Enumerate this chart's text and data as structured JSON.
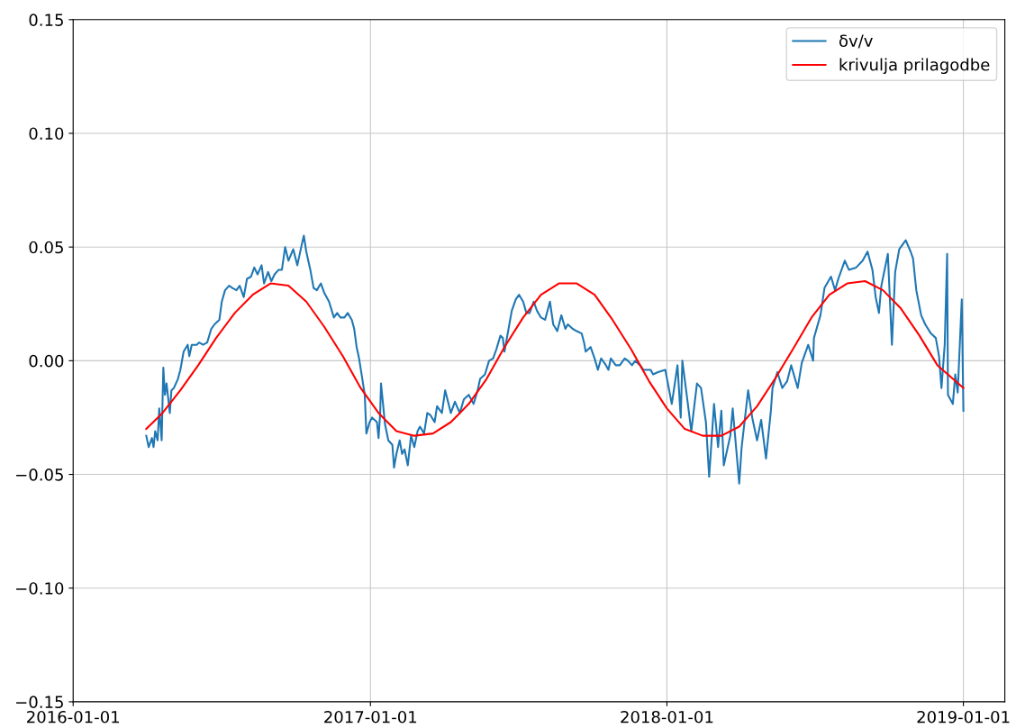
{
  "chart_data": {
    "type": "line",
    "xlim": [
      "2016-01-01",
      "2019-02-21"
    ],
    "xticks": [
      "2016-01-01",
      "2017-01-01",
      "2018-01-01",
      "2019-01-01"
    ],
    "ylim": [
      -0.15,
      0.15
    ],
    "yticks": [
      {
        "value": -0.15,
        "label": "−0.15"
      },
      {
        "value": -0.1,
        "label": "−0.10"
      },
      {
        "value": -0.05,
        "label": "−0.05"
      },
      {
        "value": 0,
        "label": "0.00"
      },
      {
        "value": 0.05,
        "label": "0.05"
      },
      {
        "value": 0.1,
        "label": "0.10"
      },
      {
        "value": 0.15,
        "label": "0.15"
      }
    ],
    "grid": true,
    "legend": "top right",
    "marker": "none",
    "line_style": "solid",
    "series": [
      {
        "name": "δv/v",
        "color": "#1f77b4",
        "x": [
          "2016-03-31",
          "2016-04-03",
          "2016-04-07",
          "2016-04-09",
          "2016-04-11",
          "2016-04-14",
          "2016-04-16",
          "2016-04-19",
          "2016-04-21",
          "2016-04-23",
          "2016-04-25",
          "2016-04-29",
          "2016-05-01",
          "2016-05-04",
          "2016-05-09",
          "2016-05-12",
          "2016-05-16",
          "2016-05-21",
          "2016-05-23",
          "2016-05-26",
          "2016-06-01",
          "2016-06-04",
          "2016-06-09",
          "2016-06-14",
          "2016-06-19",
          "2016-06-23",
          "2016-06-29",
          "2016-07-02",
          "2016-07-06",
          "2016-07-11",
          "2016-07-15",
          "2016-07-20",
          "2016-07-24",
          "2016-07-29",
          "2016-08-02",
          "2016-08-07",
          "2016-08-11",
          "2016-08-15",
          "2016-08-20",
          "2016-08-23",
          "2016-08-28",
          "2016-09-01",
          "2016-09-05",
          "2016-09-10",
          "2016-09-14",
          "2016-09-18",
          "2016-09-22",
          "2016-09-28",
          "2016-10-03",
          "2016-10-09",
          "2016-10-11",
          "2016-10-14",
          "2016-10-19",
          "2016-10-23",
          "2016-10-27",
          "2016-11-01",
          "2016-11-05",
          "2016-11-11",
          "2016-11-17",
          "2016-11-21",
          "2016-11-25",
          "2016-11-30",
          "2016-12-04",
          "2016-12-09",
          "2016-12-12",
          "2016-12-15",
          "2016-12-18",
          "2016-12-22",
          "2016-12-25",
          "2016-12-27",
          "2016-12-31",
          "2017-01-03",
          "2017-01-09",
          "2017-01-11",
          "2017-01-13",
          "2017-01-14",
          "2017-01-19",
          "2017-01-23",
          "2017-01-28",
          "2017-01-30",
          "2017-02-02",
          "2017-02-06",
          "2017-02-09",
          "2017-02-12",
          "2017-02-16",
          "2017-02-20",
          "2017-02-24",
          "2017-02-28",
          "2017-03-03",
          "2017-03-08",
          "2017-03-12",
          "2017-03-16",
          "2017-03-21",
          "2017-03-24",
          "2017-03-30",
          "2017-04-03",
          "2017-04-10",
          "2017-04-15",
          "2017-04-21",
          "2017-04-26",
          "2017-05-02",
          "2017-05-08",
          "2017-05-13",
          "2017-05-16",
          "2017-05-22",
          "2017-05-27",
          "2017-06-01",
          "2017-06-05",
          "2017-06-10",
          "2017-06-13",
          "2017-06-15",
          "2017-06-20",
          "2017-06-24",
          "2017-06-29",
          "2017-07-03",
          "2017-07-08",
          "2017-07-12",
          "2017-07-16",
          "2017-07-21",
          "2017-07-25",
          "2017-07-30",
          "2017-08-04",
          "2017-08-10",
          "2017-08-14",
          "2017-08-19",
          "2017-08-24",
          "2017-08-29",
          "2017-09-01",
          "2017-09-07",
          "2017-09-12",
          "2017-09-18",
          "2017-09-21",
          "2017-09-23",
          "2017-09-29",
          "2017-10-04",
          "2017-10-08",
          "2017-10-12",
          "2017-10-18",
          "2017-10-21",
          "2017-10-24",
          "2017-10-30",
          "2017-11-04",
          "2017-11-10",
          "2017-11-14",
          "2017-11-19",
          "2017-11-23",
          "2017-11-29",
          "2017-12-03",
          "2017-12-08",
          "2017-12-12",
          "2017-12-15",
          "2017-12-21",
          "2017-12-30",
          "2018-01-07",
          "2018-01-14",
          "2018-01-18",
          "2018-01-20",
          "2018-01-25",
          "2018-01-31",
          "2018-02-07",
          "2018-02-12",
          "2018-02-18",
          "2018-02-22",
          "2018-02-28",
          "2018-03-05",
          "2018-03-09",
          "2018-03-12",
          "2018-03-20",
          "2018-03-23",
          "2018-03-31",
          "2018-04-03",
          "2018-04-11",
          "2018-04-16",
          "2018-04-22",
          "2018-04-27",
          "2018-05-03",
          "2018-05-09",
          "2018-05-11",
          "2018-05-17",
          "2018-05-23",
          "2018-05-29",
          "2018-06-03",
          "2018-06-11",
          "2018-06-16",
          "2018-06-24",
          "2018-06-30",
          "2018-07-01",
          "2018-07-09",
          "2018-07-14",
          "2018-07-22",
          "2018-07-27",
          "2018-07-31",
          "2018-08-08",
          "2018-08-13",
          "2018-08-22",
          "2018-08-30",
          "2018-09-05",
          "2018-09-11",
          "2018-09-15",
          "2018-09-19",
          "2018-09-22",
          "2018-09-30",
          "2018-10-05",
          "2018-10-09",
          "2018-10-14",
          "2018-10-22",
          "2018-10-28",
          "2018-10-31",
          "2018-11-04",
          "2018-11-10",
          "2018-11-15",
          "2018-11-22",
          "2018-11-28",
          "2018-12-02",
          "2018-12-05",
          "2018-12-09",
          "2018-12-12",
          "2018-12-13",
          "2018-12-19",
          "2018-12-22",
          "2018-12-25",
          "2018-12-30",
          "2019-01-01"
        ],
        "values": [
          -0.033,
          -0.038,
          -0.034,
          -0.038,
          -0.031,
          -0.035,
          -0.021,
          -0.035,
          -0.003,
          -0.015,
          -0.01,
          -0.023,
          -0.013,
          -0.012,
          -0.008,
          -0.004,
          0.004,
          0.007,
          0.002,
          0.007,
          0.007,
          0.008,
          0.007,
          0.008,
          0.014,
          0.016,
          0.018,
          0.026,
          0.031,
          0.033,
          0.032,
          0.031,
          0.033,
          0.028,
          0.036,
          0.037,
          0.041,
          0.038,
          0.042,
          0.034,
          0.039,
          0.035,
          0.038,
          0.04,
          0.04,
          0.05,
          0.044,
          0.049,
          0.042,
          0.052,
          0.055,
          0.048,
          0.04,
          0.032,
          0.031,
          0.034,
          0.03,
          0.026,
          0.019,
          0.021,
          0.019,
          0.019,
          0.021,
          0.018,
          0.014,
          0.006,
          0.001,
          -0.008,
          -0.015,
          -0.032,
          -0.027,
          -0.025,
          -0.027,
          -0.034,
          -0.023,
          -0.01,
          -0.028,
          -0.035,
          -0.037,
          -0.047,
          -0.041,
          -0.035,
          -0.041,
          -0.039,
          -0.046,
          -0.033,
          -0.038,
          -0.031,
          -0.029,
          -0.032,
          -0.023,
          -0.024,
          -0.027,
          -0.02,
          -0.023,
          -0.013,
          -0.023,
          -0.018,
          -0.023,
          -0.017,
          -0.015,
          -0.019,
          -0.013,
          -0.008,
          -0.006,
          0.0,
          0.001,
          0.005,
          0.011,
          0.01,
          0.004,
          0.014,
          0.022,
          0.027,
          0.029,
          0.026,
          0.021,
          0.021,
          0.026,
          0.022,
          0.019,
          0.018,
          0.026,
          0.016,
          0.013,
          0.02,
          0.014,
          0.016,
          0.014,
          0.013,
          0.012,
          0.008,
          0.004,
          0.006,
          0.001,
          -0.004,
          0.001,
          -0.002,
          -0.004,
          0.001,
          -0.002,
          -0.002,
          0.001,
          0.0,
          -0.002,
          0.0,
          -0.002,
          -0.004,
          -0.004,
          -0.004,
          -0.006,
          -0.005,
          -0.004,
          -0.019,
          -0.002,
          -0.025,
          0.0,
          -0.014,
          -0.031,
          -0.01,
          -0.012,
          -0.027,
          -0.051,
          -0.019,
          -0.038,
          -0.022,
          -0.046,
          -0.033,
          -0.021,
          -0.054,
          -0.038,
          -0.013,
          -0.025,
          -0.035,
          -0.026,
          -0.043,
          -0.022,
          -0.012,
          -0.005,
          -0.012,
          -0.009,
          -0.002,
          -0.012,
          -0.001,
          0.007,
          0.0,
          0.01,
          0.02,
          0.032,
          0.037,
          0.031,
          0.036,
          0.044,
          0.04,
          0.041,
          0.044,
          0.048,
          0.04,
          0.028,
          0.021,
          0.033,
          0.047,
          0.007,
          0.039,
          0.049,
          0.053,
          0.048,
          0.045,
          0.031,
          0.02,
          0.016,
          0.012,
          0.01,
          0.002,
          -0.012,
          0.007,
          0.047,
          -0.015,
          -0.019,
          -0.006,
          -0.014,
          0.027,
          -0.022
        ]
      },
      {
        "name": "krivulja prilagodbe",
        "color": "#ff0000",
        "x": [
          "2016-03-31",
          "2016-04-20",
          "2016-05-12",
          "2016-06-03",
          "2016-06-25",
          "2016-07-18",
          "2016-08-09",
          "2016-08-31",
          "2016-09-22",
          "2016-10-14",
          "2016-11-05",
          "2016-11-28",
          "2016-12-20",
          "2017-01-11",
          "2017-02-02",
          "2017-02-24",
          "2017-03-19",
          "2017-04-10",
          "2017-05-02",
          "2017-05-24",
          "2017-06-15",
          "2017-07-08",
          "2017-07-30",
          "2017-08-21",
          "2017-09-12",
          "2017-10-04",
          "2017-10-26",
          "2017-11-18",
          "2017-12-10",
          "2018-01-01",
          "2018-01-23",
          "2018-02-14",
          "2018-03-09",
          "2018-03-31",
          "2018-04-22",
          "2018-05-14",
          "2018-06-05",
          "2018-06-28",
          "2018-07-20",
          "2018-08-11",
          "2018-09-02",
          "2018-09-24",
          "2018-10-16",
          "2018-11-08",
          "2018-11-30",
          "2019-01-01"
        ],
        "values": [
          -0.03,
          -0.023,
          -0.013,
          -0.002,
          0.01,
          0.021,
          0.029,
          0.034,
          0.033,
          0.026,
          0.015,
          0.002,
          -0.012,
          -0.023,
          -0.031,
          -0.033,
          -0.032,
          -0.027,
          -0.019,
          -0.008,
          0.006,
          0.019,
          0.029,
          0.034,
          0.034,
          0.029,
          0.018,
          0.005,
          -0.009,
          -0.021,
          -0.03,
          -0.033,
          -0.033,
          -0.029,
          -0.02,
          -0.008,
          0.005,
          0.019,
          0.029,
          0.034,
          0.035,
          0.031,
          0.023,
          0.011,
          -0.002,
          -0.012
        ]
      }
    ]
  }
}
